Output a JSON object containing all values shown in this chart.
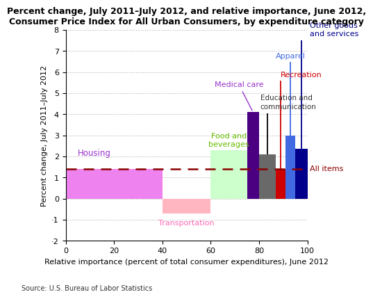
{
  "title_line1": "Percent change, July 2011–July 2012, and relative importance, June 2012,",
  "title_line2": "Consumer Price Index for All Urban Consumers, by expenditure category",
  "xlabel": "Relative importance (percent of total consumer expenditures), June 2012",
  "ylabel": "Percent change, July 2011–July 2012",
  "source": "Source: U.S. Bureau of Labor Statistics",
  "all_items_line": 1.4,
  "bars": [
    {
      "label": "Housing",
      "x_left": 0,
      "x_right": 40,
      "y": 1.4,
      "color": "#EE82EE"
    },
    {
      "label": "Transportation",
      "x_left": 40,
      "x_right": 60,
      "y": -0.7,
      "color": "#FFB6C1"
    },
    {
      "label": "Food and\nbeverages",
      "x_left": 60,
      "x_right": 75,
      "y": 2.3,
      "color": "#CCFFCC"
    },
    {
      "label": "Medical care",
      "x_left": 75,
      "x_right": 80,
      "y": 4.1,
      "color": "#4B0082"
    },
    {
      "label": "Education and\ncommunication",
      "x_left": 80,
      "x_right": 87,
      "y": 2.1,
      "color": "#696969",
      "whisker_top": 4.05,
      "whisker_bottom": 2.1,
      "whisker_color": "#000000"
    },
    {
      "label": "Recreation",
      "x_left": 87,
      "x_right": 91,
      "y": 1.4,
      "color": "#CC0000",
      "whisker_top": 5.6,
      "whisker_bottom": 1.4,
      "whisker_color": "#CC0000"
    },
    {
      "label": "Apparel",
      "x_left": 91,
      "x_right": 95,
      "y": 3.0,
      "color": "#4169E1",
      "whisker_top": 6.5,
      "whisker_bottom": 3.0,
      "whisker_color": "#4169E1"
    },
    {
      "label": "Other goods\nand services",
      "x_left": 95,
      "x_right": 100,
      "y": 2.35,
      "color": "#00008B",
      "whisker_top": 7.5,
      "whisker_bottom": 2.35,
      "whisker_color": "#00008B"
    }
  ],
  "xlim": [
    0,
    100
  ],
  "ylim": [
    -2,
    8
  ],
  "yticks": [
    -2,
    -1,
    0,
    1,
    2,
    3,
    4,
    5,
    6,
    7,
    8
  ],
  "xticks": [
    0,
    20,
    40,
    60,
    80,
    100
  ],
  "bg_color": "#FFFFFF",
  "grid_color": "#AAAAAA",
  "dashed_line_color": "#8B0000"
}
